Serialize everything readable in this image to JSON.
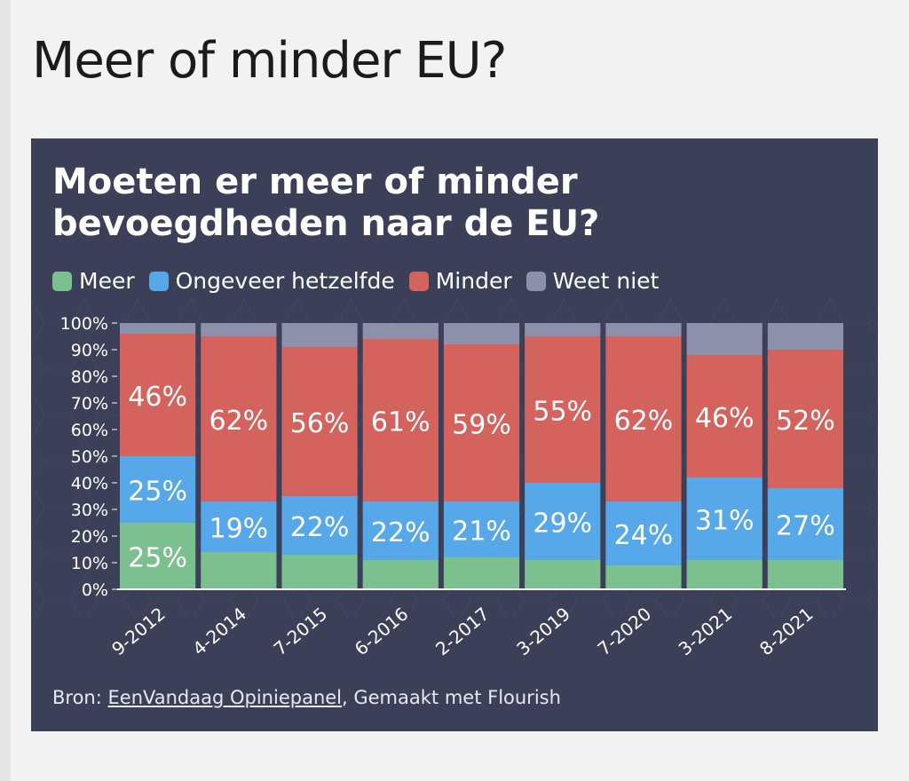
{
  "page": {
    "title": "Meer of minder EU?"
  },
  "chart": {
    "title_lines": [
      "Moeten er meer of minder",
      "bevoegdheden naar de EU?"
    ],
    "legend": [
      "Meer",
      "Ongeveer hetzelfde",
      "Minder",
      "Weet niet"
    ],
    "source": {
      "prefix": "Bron: ",
      "link": "EenVandaag Opiniepanel",
      "suffix": ", Gemaakt met Flourish"
    }
  },
  "colors": {
    "meer": "#7cc08f",
    "hetzelfde": "#56a8e8",
    "minder": "#d4635e",
    "weet_niet": "#8d90ab",
    "background": "#3c3f58"
  },
  "chart_data": {
    "type": "bar",
    "stacked": true,
    "categories": [
      "9-2012",
      "4-2014",
      "7-2015",
      "6-2016",
      "2-2017",
      "3-2019",
      "7-2020",
      "3-2021",
      "8-2021"
    ],
    "series": [
      {
        "name": "Meer",
        "values": [
          25,
          14,
          13,
          11,
          12,
          11,
          9,
          11,
          11
        ],
        "labeled": [
          true,
          false,
          false,
          false,
          false,
          false,
          false,
          false,
          false
        ]
      },
      {
        "name": "Ongeveer hetzelfde",
        "values": [
          25,
          19,
          22,
          22,
          21,
          29,
          24,
          31,
          27
        ],
        "labeled": [
          true,
          true,
          true,
          true,
          true,
          true,
          true,
          true,
          true
        ]
      },
      {
        "name": "Minder",
        "values": [
          46,
          62,
          56,
          61,
          59,
          55,
          62,
          46,
          52
        ],
        "labeled": [
          true,
          true,
          true,
          true,
          true,
          true,
          true,
          true,
          true
        ]
      },
      {
        "name": "Weet niet",
        "values": [
          4,
          5,
          9,
          6,
          8,
          5,
          5,
          12,
          10
        ],
        "labeled": [
          false,
          false,
          false,
          false,
          false,
          false,
          false,
          false,
          false
        ]
      }
    ],
    "title": "Moeten er meer of minder bevoegdheden naar de EU?",
    "xlabel": "",
    "ylabel": "",
    "ylim": [
      0,
      100
    ],
    "yticks": [
      "0%",
      "10%",
      "20%",
      "30%",
      "40%",
      "50%",
      "60%",
      "70%",
      "80%",
      "90%",
      "100%"
    ],
    "value_suffix": "%",
    "legend_position": "top-left"
  }
}
